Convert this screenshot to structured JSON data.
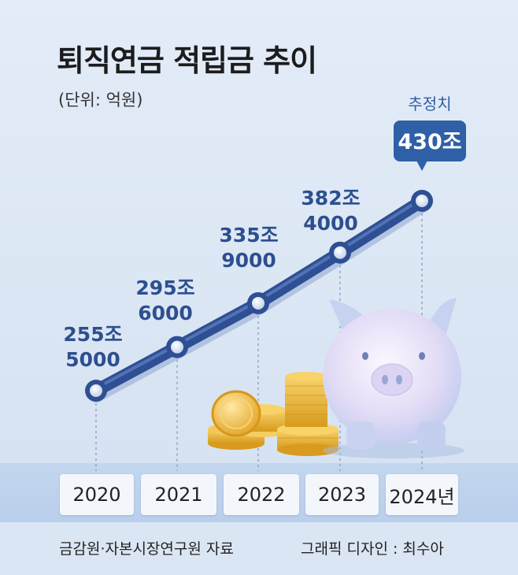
{
  "title": "퇴직연금 적립금 추이",
  "unit_note": "(단위: 억원)",
  "estimate_label": "추정치",
  "chart_data": {
    "type": "line",
    "title": "퇴직연금 적립금 추이",
    "unit": "(단위: 억원)",
    "categories": [
      "2020",
      "2021",
      "2022",
      "2023",
      "2024년"
    ],
    "values": [
      2555000,
      2956000,
      3359000,
      3824000,
      4300000
    ],
    "data_labels": [
      [
        "255조",
        "5000"
      ],
      [
        "295조",
        "6000"
      ],
      [
        "335조",
        "9000"
      ],
      [
        "382조",
        "4000"
      ],
      [
        "430조"
      ]
    ],
    "estimated_index": 4,
    "line_color": "#2e4f93",
    "badge_color": "#2f5fa6"
  },
  "footer": {
    "source": "금감원·자본시장연구원 자료",
    "credit": "그래픽 디자인 : 최수아"
  }
}
